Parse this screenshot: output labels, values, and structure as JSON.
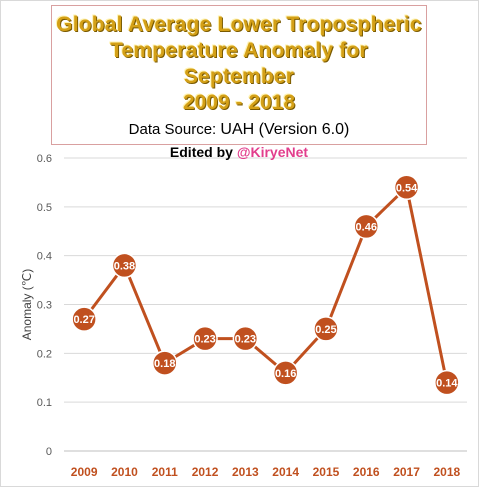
{
  "title": {
    "line1": "Global Average Lower Tropospheric",
    "line2": "Temperature Anomaly for September",
    "line3": "2009 - 2018",
    "source_label": "Data Source: ",
    "source_value": "UAH (Version 6.0)",
    "edited_label": "Edited by ",
    "edited_handle": "@KiryeNet"
  },
  "colors": {
    "line": "#c0501f",
    "marker_fill": "#c0501f",
    "marker_stroke": "#ffffff",
    "title": "#d4a017",
    "handle": "#e23d8c"
  },
  "chart_data": {
    "type": "line",
    "ylabel": "Anomaly (℃)",
    "ylim": [
      0,
      0.6
    ],
    "y_ticks": [
      "0",
      "0.1",
      "0.2",
      "0.3",
      "0.4",
      "0.5",
      "0.6"
    ],
    "grid": true,
    "categories": [
      "2009",
      "2010",
      "2011",
      "2012",
      "2013",
      "2014",
      "2015",
      "2016",
      "2017",
      "2018"
    ],
    "series": [
      {
        "values": [
          0.27,
          0.38,
          0.18,
          0.23,
          0.23,
          0.16,
          0.25,
          0.46,
          0.54,
          0.14
        ],
        "labels": [
          "0.27",
          "0.38",
          "0.18",
          "0.23",
          "0.23",
          "0.16",
          "0.25",
          "0.46",
          "0.54",
          "0.14"
        ]
      }
    ]
  }
}
